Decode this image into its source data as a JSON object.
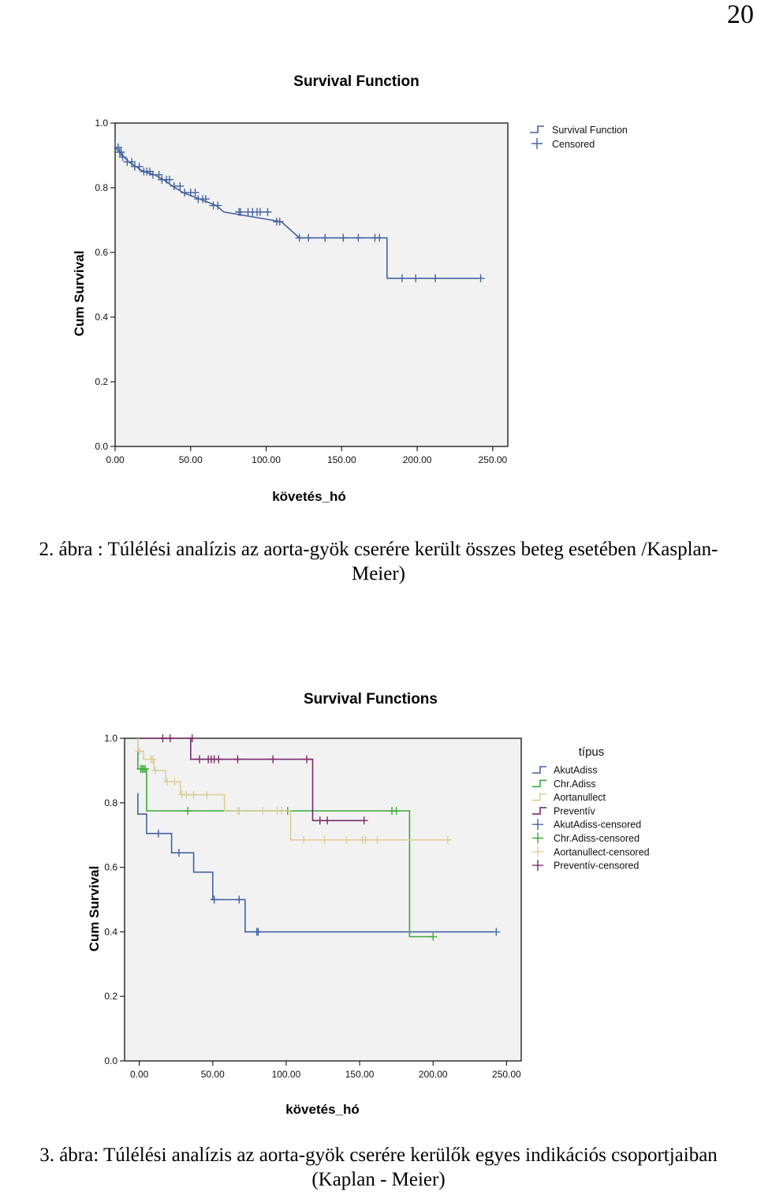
{
  "page_number": "20",
  "figure2": {
    "caption_line1": "2. ábra : Túlélési analízis az aorta-gyök cserére került összes beteg esetében /Kasplan-",
    "caption_line2": "Meier)"
  },
  "figure3": {
    "caption_line1": "3. ábra: Túlélési analízis az aorta-gyök cserére kerülők egyes indikációs csoportjaiban",
    "caption_line2": "(Kaplan - Meier)"
  },
  "chart_data": [
    {
      "type": "line",
      "title": "Survival Function",
      "xlabel": "követés_hó",
      "ylabel": "Cum Survival",
      "xlim": [
        0,
        260
      ],
      "ylim": [
        0,
        1.0
      ],
      "xticks": [
        "0.00",
        "50.00",
        "100.00",
        "150.00",
        "200.00",
        "250.00"
      ],
      "yticks": [
        "0.0",
        "0.2",
        "0.4",
        "0.6",
        "0.8",
        "1.0"
      ],
      "plot_background": "#f2f2f2",
      "legend_position": "top-right",
      "legend": [
        "Survival Function",
        "Censored"
      ],
      "series": [
        {
          "name": "Survival Function",
          "color": "#44629e",
          "steps": [
            [
              0,
              0.955
            ],
            [
              0,
              0.925
            ],
            [
              3,
              0.91
            ],
            [
              6,
              0.895
            ],
            [
              9,
              0.88
            ],
            [
              14,
              0.865
            ],
            [
              19,
              0.85
            ],
            [
              26,
              0.84
            ],
            [
              32,
              0.825
            ],
            [
              38,
              0.805
            ],
            [
              45,
              0.785
            ],
            [
              56,
              0.765
            ],
            [
              67,
              0.745
            ],
            [
              72,
              0.725
            ],
            [
              110,
              0.695
            ],
            [
              122,
              0.645
            ],
            [
              180,
              0.645
            ],
            [
              180,
              0.52
            ],
            [
              240,
              0.52
            ]
          ],
          "censored": [
            [
              2,
              0.925
            ],
            [
              3,
              0.91
            ],
            [
              4,
              0.91
            ],
            [
              5,
              0.895
            ],
            [
              8,
              0.88
            ],
            [
              11,
              0.88
            ],
            [
              13,
              0.865
            ],
            [
              16,
              0.865
            ],
            [
              19,
              0.85
            ],
            [
              21,
              0.85
            ],
            [
              23,
              0.85
            ],
            [
              25,
              0.84
            ],
            [
              29,
              0.84
            ],
            [
              31,
              0.825
            ],
            [
              34,
              0.825
            ],
            [
              36,
              0.825
            ],
            [
              39,
              0.805
            ],
            [
              43,
              0.805
            ],
            [
              46,
              0.785
            ],
            [
              50,
              0.785
            ],
            [
              53,
              0.785
            ],
            [
              55,
              0.765
            ],
            [
              58,
              0.765
            ],
            [
              60,
              0.765
            ],
            [
              65,
              0.745
            ],
            [
              68,
              0.745
            ],
            [
              82,
              0.725
            ],
            [
              83,
              0.725
            ],
            [
              88,
              0.725
            ],
            [
              91,
              0.725
            ],
            [
              94,
              0.725
            ],
            [
              96,
              0.725
            ],
            [
              101,
              0.725
            ],
            [
              107,
              0.695
            ],
            [
              109,
              0.695
            ],
            [
              122,
              0.645
            ],
            [
              128,
              0.645
            ],
            [
              139,
              0.645
            ],
            [
              151,
              0.645
            ],
            [
              161,
              0.645
            ],
            [
              172,
              0.645
            ],
            [
              175,
              0.645
            ],
            [
              190,
              0.52
            ],
            [
              199,
              0.52
            ],
            [
              212,
              0.52
            ],
            [
              242,
              0.52
            ]
          ]
        }
      ]
    },
    {
      "type": "line",
      "title": "Survival Functions",
      "xlabel": "követés_hó",
      "ylabel": "Cum Survival",
      "xlim": [
        -10,
        260
      ],
      "ylim": [
        0,
        1.0
      ],
      "xticks": [
        "0.00",
        "50.00",
        "100.00",
        "150.00",
        "200.00",
        "250.00"
      ],
      "yticks": [
        "0.0",
        "0.2",
        "0.4",
        "0.6",
        "0.8",
        "1.0"
      ],
      "plot_background": "#f2f2f2",
      "legend_position": "right",
      "legend_title": "típus",
      "legend": [
        "AkutAdiss",
        "Chr.Adiss",
        "Aortanullect",
        "Preventív",
        "AkutAdiss-censored",
        "Chr.Adiss-censored",
        "Aortanullect-censored",
        "Preventív-censored"
      ],
      "series": [
        {
          "name": "AkutAdiss",
          "color": "#44629e",
          "steps": [
            [
              -1,
              0.83
            ],
            [
              -1,
              0.765
            ],
            [
              5,
              0.765
            ],
            [
              5,
              0.705
            ],
            [
              22,
              0.705
            ],
            [
              22,
              0.645
            ],
            [
              37,
              0.645
            ],
            [
              37,
              0.585
            ],
            [
              50,
              0.585
            ],
            [
              50,
              0.5
            ],
            [
              72,
              0.5
            ],
            [
              72,
              0.4
            ],
            [
              241,
              0.4
            ]
          ],
          "censored": [
            [
              13,
              0.705
            ],
            [
              27,
              0.645
            ],
            [
              51,
              0.5
            ],
            [
              68,
              0.5
            ],
            [
              80,
              0.4
            ],
            [
              81,
              0.4
            ],
            [
              243,
              0.4
            ]
          ]
        },
        {
          "name": "Chr.Adiss",
          "color": "#3caa3c",
          "steps": [
            [
              -1,
              1.0
            ],
            [
              -1,
              0.905
            ],
            [
              5,
              0.905
            ],
            [
              5,
              0.775
            ],
            [
              184,
              0.775
            ],
            [
              184,
              0.385
            ],
            [
              200,
              0.385
            ]
          ],
          "censored": [
            [
              1,
              0.905
            ],
            [
              2,
              0.905
            ],
            [
              3,
              0.905
            ],
            [
              4,
              0.905
            ],
            [
              33,
              0.775
            ],
            [
              101,
              0.775
            ],
            [
              172,
              0.775
            ],
            [
              175,
              0.775
            ],
            [
              200,
              0.385
            ]
          ]
        },
        {
          "name": "Aortanullect",
          "color": "#d8cf9a",
          "steps": [
            [
              -1,
              1.0
            ],
            [
              -1,
              0.96
            ],
            [
              3,
              0.96
            ],
            [
              3,
              0.935
            ],
            [
              10,
              0.935
            ],
            [
              10,
              0.9
            ],
            [
              18,
              0.9
            ],
            [
              18,
              0.865
            ],
            [
              28,
              0.865
            ],
            [
              28,
              0.825
            ],
            [
              58,
              0.825
            ],
            [
              58,
              0.775
            ],
            [
              103,
              0.775
            ],
            [
              103,
              0.685
            ],
            [
              210,
              0.685
            ]
          ],
          "censored": [
            [
              0,
              0.96
            ],
            [
              8,
              0.935
            ],
            [
              9,
              0.935
            ],
            [
              11,
              0.9
            ],
            [
              19,
              0.865
            ],
            [
              24,
              0.865
            ],
            [
              29,
              0.825
            ],
            [
              32,
              0.825
            ],
            [
              37,
              0.825
            ],
            [
              46,
              0.825
            ],
            [
              67,
              0.775
            ],
            [
              68,
              0.775
            ],
            [
              84,
              0.775
            ],
            [
              94,
              0.775
            ],
            [
              97,
              0.775
            ],
            [
              112,
              0.685
            ],
            [
              126,
              0.685
            ],
            [
              141,
              0.685
            ],
            [
              152,
              0.685
            ],
            [
              154,
              0.685
            ],
            [
              162,
              0.685
            ],
            [
              210,
              0.685
            ]
          ]
        },
        {
          "name": "Preventív",
          "color": "#7a2a6a",
          "steps": [
            [
              0,
              1.0
            ],
            [
              35,
              1.0
            ],
            [
              35,
              0.935
            ],
            [
              118,
              0.935
            ],
            [
              118,
              0.745
            ],
            [
              152,
              0.745
            ]
          ],
          "censored": [
            [
              16,
              1.0
            ],
            [
              21,
              1.0
            ],
            [
              36,
              1.0
            ],
            [
              41,
              0.935
            ],
            [
              47,
              0.935
            ],
            [
              49,
              0.935
            ],
            [
              51,
              0.935
            ],
            [
              54,
              0.935
            ],
            [
              67,
              0.935
            ],
            [
              91,
              0.935
            ],
            [
              114,
              0.935
            ],
            [
              123,
              0.745
            ],
            [
              128,
              0.745
            ],
            [
              153,
              0.745
            ]
          ]
        }
      ]
    }
  ]
}
